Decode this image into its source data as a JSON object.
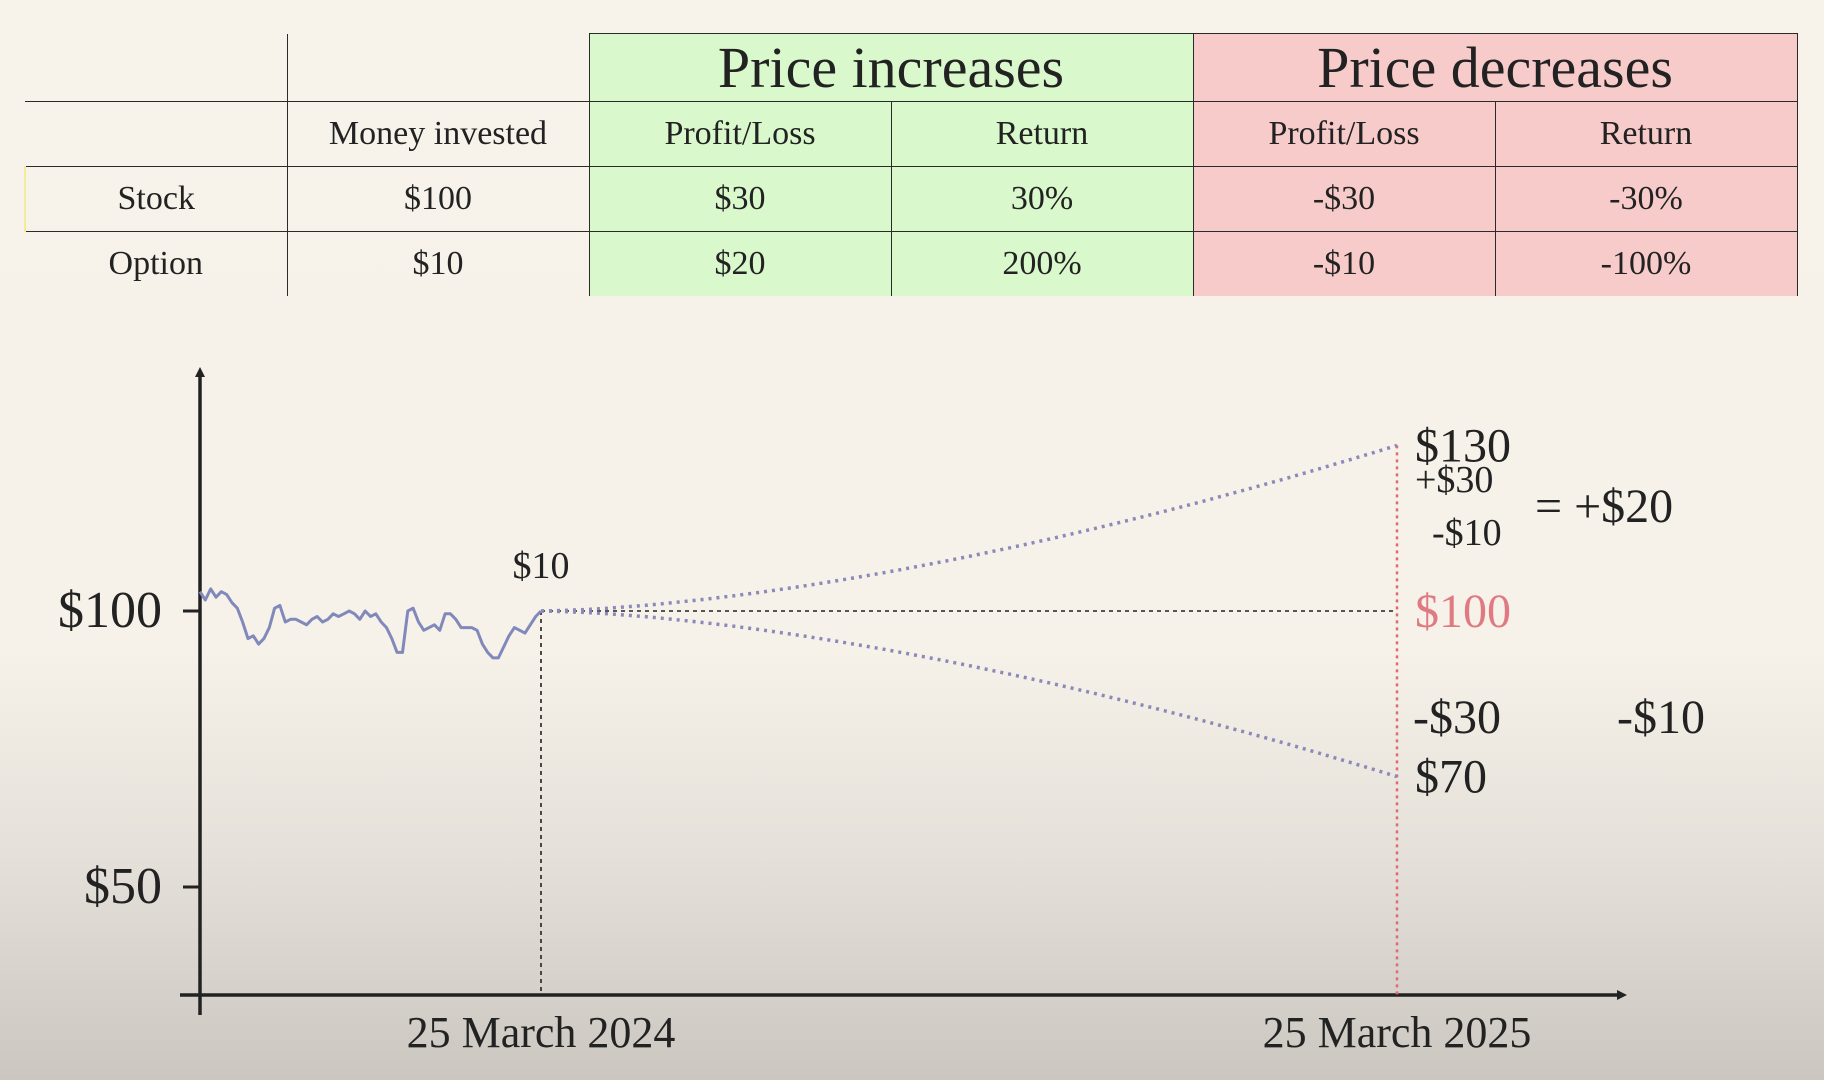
{
  "table": {
    "group_headers": [
      "Price increases",
      "Price decreases"
    ],
    "column_headers": [
      "Money invested",
      "Profit/Loss",
      "Return",
      "Profit/Loss",
      "Return"
    ],
    "rows": [
      {
        "label": "Stock",
        "cells": [
          "$100",
          "$30",
          "30%",
          "-$30",
          "-30%"
        ]
      },
      {
        "label": "Option",
        "cells": [
          "$10",
          "$20",
          "200%",
          "-$10",
          "-100%"
        ]
      }
    ],
    "colors": {
      "increase_bg": "#d9f8cc",
      "decrease_bg": "#f8cbcb"
    }
  },
  "chart_data": {
    "type": "line",
    "x_ticks": [
      "25 March 2024",
      "25 March 2025"
    ],
    "y_ticks": [
      "$100",
      "$50"
    ],
    "y_tick_values": [
      100,
      50
    ],
    "ylim": [
      31,
      170
    ],
    "history": {
      "color": "#8189bb",
      "values": [
        103.5,
        102.0,
        104.0,
        102.5,
        103.5,
        103.0,
        101.5,
        100.5,
        98.0,
        95.0,
        95.5,
        94.0,
        95.0,
        97.0,
        100.5,
        101.0,
        98.0,
        98.5,
        98.5,
        98.0,
        97.5,
        98.5,
        99.0,
        98.0,
        98.5,
        99.5,
        99.0,
        99.5,
        100.0,
        99.5,
        98.5,
        100.0,
        99.0,
        99.5,
        98.0,
        97.0,
        95.0,
        92.5,
        92.5,
        100.0,
        100.5,
        98.0,
        96.5,
        97.0,
        97.5,
        96.5,
        99.5,
        99.5,
        98.5,
        97.0,
        97.0,
        97.0,
        96.5,
        94.0,
        92.5,
        91.5,
        91.5,
        93.5,
        95.5,
        97.0,
        96.5,
        96.0,
        97.5,
        99.0,
        100.0
      ]
    },
    "projection": {
      "color": "#8c88ba",
      "start": 100,
      "up_end": 130,
      "down_end": 70,
      "up_label": "$130",
      "down_label": "$70",
      "start_label": "$100",
      "start_label_color": "#e07a82",
      "option_cost_label": "$10"
    },
    "vertical_marker_color": "#e06a72",
    "annotations": {
      "gain_line1": "+$30",
      "gain_line2": "-$10",
      "gain_result": "= +$20",
      "stock_loss": "-$30",
      "option_loss": "-$10"
    }
  }
}
